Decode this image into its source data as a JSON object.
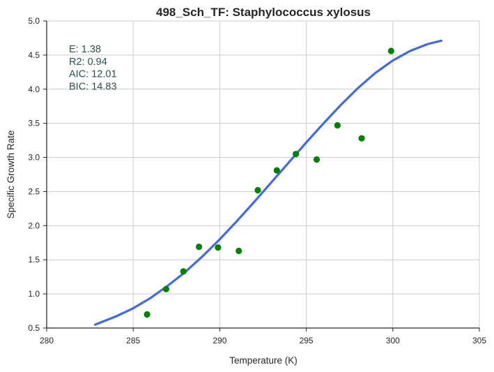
{
  "chart_data": {
    "type": "scatter",
    "title": "498_Sch_TF: Staphylococcus xylosus",
    "xlabel": "Temperature (K)",
    "ylabel": "Specific Growth Rate",
    "xlim": [
      280,
      305
    ],
    "ylim": [
      0.5,
      5.0
    ],
    "x_ticks": [
      "280",
      "285",
      "290",
      "295",
      "300",
      "305"
    ],
    "y_ticks": [
      "0.5",
      "1.0",
      "1.5",
      "2.0",
      "2.5",
      "3.0",
      "3.5",
      "4.0",
      "4.5",
      "5.0"
    ],
    "grid": true,
    "stats": [
      {
        "label": "E:",
        "value": "1.38"
      },
      {
        "label": "R2:",
        "value": "0.94"
      },
      {
        "label": "AIC:",
        "value": "12.01"
      },
      {
        "label": "BIC:",
        "value": "14.83"
      }
    ],
    "series": [
      {
        "kind": "points",
        "color": "#008000",
        "x": [
          285.8,
          286.9,
          287.9,
          288.8,
          289.9,
          291.1,
          292.2,
          293.3,
          294.4,
          295.6,
          296.8,
          298.2,
          299.9
        ],
        "y": [
          0.7,
          1.07,
          1.33,
          1.69,
          1.68,
          1.63,
          2.52,
          2.81,
          3.05,
          2.97,
          3.47,
          3.28,
          4.56
        ]
      },
      {
        "kind": "fit-line",
        "color": "#4169e1",
        "x": [
          282.8,
          284.0,
          285.0,
          286.0,
          287.0,
          288.0,
          289.0,
          290.0,
          291.0,
          292.0,
          293.0,
          294.0,
          295.0,
          296.0,
          297.0,
          298.0,
          299.0,
          300.0,
          301.0,
          302.0,
          302.8
        ],
        "y": [
          0.55,
          0.67,
          0.79,
          0.94,
          1.12,
          1.32,
          1.55,
          1.8,
          2.07,
          2.35,
          2.64,
          2.93,
          3.22,
          3.5,
          3.77,
          4.02,
          4.24,
          4.42,
          4.56,
          4.66,
          4.71
        ]
      }
    ]
  }
}
